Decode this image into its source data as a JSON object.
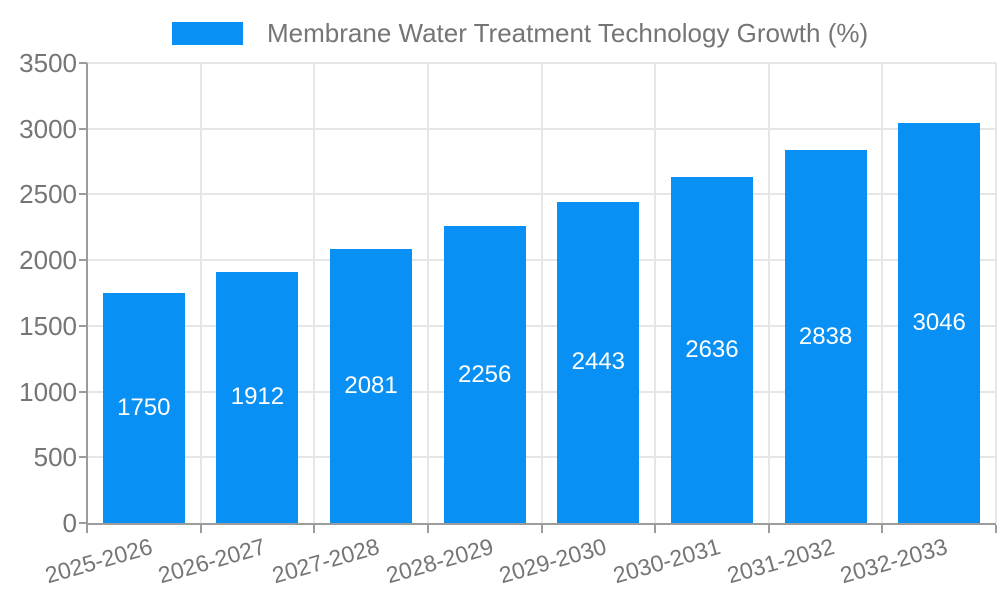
{
  "legend": {
    "label": "Membrane Water Treatment Technology Growth (%)"
  },
  "chart_data": {
    "type": "bar",
    "title": "Membrane Water Treatment Technology Growth (%)",
    "categories": [
      "2025-2026",
      "2026-2027",
      "2027-2028",
      "2028-2029",
      "2029-2030",
      "2030-2031",
      "2031-2032",
      "2032-2033"
    ],
    "values": [
      1750,
      1912,
      2081,
      2256,
      2443,
      2636,
      2838,
      3046
    ],
    "xlabel": "",
    "ylabel": "",
    "ylim": [
      0,
      3500
    ],
    "ytick_step": 500,
    "grid": true,
    "legend_position": "top-center",
    "bar_labels": "inside-center",
    "x_label_rotation_deg": -16,
    "colors": {
      "bar": "#0890f4",
      "bar_label": "#ffffff",
      "grid_line": "#e6e6e6",
      "axis_line": "#9c9c9c",
      "tick_label": "#757575",
      "legend_text": "#757575",
      "background": "#ffffff"
    }
  }
}
